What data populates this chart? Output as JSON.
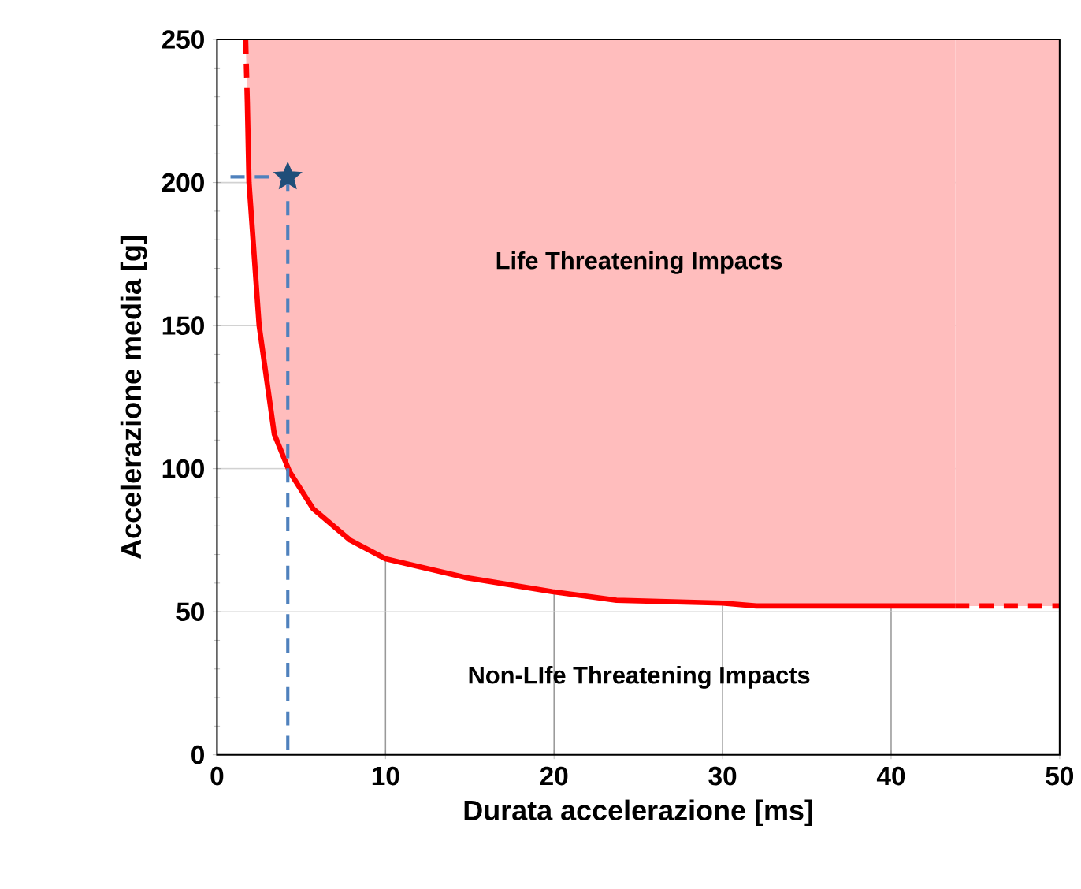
{
  "chart_data": {
    "type": "line",
    "xlabel": "Durata accelerazione [ms]",
    "ylabel": "Accelerazione media [g]",
    "xlim": [
      0,
      50
    ],
    "ylim": [
      0,
      250
    ],
    "xticks": [
      0,
      10,
      20,
      30,
      40,
      50
    ],
    "yticks": [
      0,
      50,
      100,
      150,
      200,
      250
    ],
    "grid": true,
    "series": [
      {
        "color": "#ff0000",
        "line_style": "dashed",
        "x": [
          1.7,
          1.8
        ],
        "values": [
          250,
          228
        ],
        "upper": [
          250,
          250
        ],
        "lower": [
          250,
          228
        ]
      },
      {
        "color": "#ff0000",
        "line_style": "solid",
        "x": [
          1.8,
          1.9,
          2.5,
          3.4,
          4.3,
          5.7,
          7.9,
          10,
          14.7,
          19.9,
          23.7,
          30,
          32,
          43.8
        ],
        "values": [
          228,
          200,
          150,
          112,
          99,
          86,
          75,
          68.5,
          62,
          57,
          54,
          53,
          52,
          52
        ],
        "upper": [
          250,
          250,
          250,
          250,
          250,
          250,
          250,
          250,
          250,
          250,
          250,
          250,
          250,
          250
        ],
        "lower": [
          228,
          200,
          150,
          112,
          99,
          86,
          75,
          68.5,
          62,
          57,
          54,
          53,
          52,
          52
        ]
      },
      {
        "color": "#ff0000",
        "line_style": "dashed",
        "x": [
          43.8,
          50
        ],
        "values": [
          52,
          52
        ],
        "upper": [
          250,
          250
        ],
        "lower": [
          52,
          52
        ]
      },
      {
        "color": "#4f81bd",
        "line_style": "dashed",
        "x": [
          0.8,
          4.2
        ],
        "values": [
          202,
          202
        ]
      },
      {
        "color": "#4f81bd",
        "line_style": "dashed",
        "x": [
          4.2,
          4.2
        ],
        "values": [
          202,
          0
        ]
      },
      {
        "type": "scatter",
        "color": "#1f4e79",
        "marker": "star",
        "x": [
          4.2
        ],
        "values": [
          202
        ]
      }
    ],
    "annotations": [
      "Life Threatening Impacts",
      "Non-LIfe Threatening Impacts"
    ]
  }
}
